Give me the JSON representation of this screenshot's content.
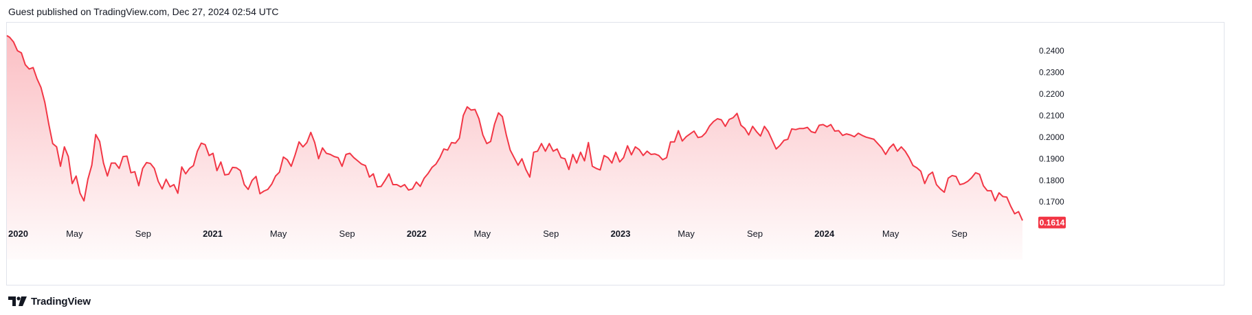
{
  "header": {
    "published": "Guest published on TradingView.com, Dec 27, 2024 02:54 UTC"
  },
  "footer": {
    "brand": "TradingView",
    "logo_icon": "tradingview-logo-icon"
  },
  "colors": {
    "line": "#f23645",
    "fill_top": "#f23645",
    "price_badge_bg": "#f23645",
    "price_badge_text": "#ffffff",
    "axis_text": "#131722",
    "border": "#e0e3eb"
  },
  "chart_data": {
    "type": "area",
    "ylim": [
      0.158,
      0.246
    ],
    "yticks": [
      "0.2400",
      "0.2300",
      "0.2200",
      "0.2100",
      "0.2000",
      "0.1900",
      "0.1800",
      "0.1700"
    ],
    "last_price": "0.1614",
    "xticks": [
      {
        "date": "2020-01-01",
        "label": "2020",
        "bold": true
      },
      {
        "date": "2020-05-01",
        "label": "May",
        "bold": false
      },
      {
        "date": "2020-09-01",
        "label": "Sep",
        "bold": false
      },
      {
        "date": "2021-01-01",
        "label": "2021",
        "bold": true
      },
      {
        "date": "2021-05-01",
        "label": "May",
        "bold": false
      },
      {
        "date": "2021-09-01",
        "label": "Sep",
        "bold": false
      },
      {
        "date": "2022-01-01",
        "label": "2022",
        "bold": true
      },
      {
        "date": "2022-05-01",
        "label": "May",
        "bold": false
      },
      {
        "date": "2022-09-01",
        "label": "Sep",
        "bold": false
      },
      {
        "date": "2023-01-01",
        "label": "2023",
        "bold": true
      },
      {
        "date": "2023-05-01",
        "label": "May",
        "bold": false
      },
      {
        "date": "2023-09-01",
        "label": "Sep",
        "bold": false
      },
      {
        "date": "2024-01-01",
        "label": "2024",
        "bold": true
      },
      {
        "date": "2024-05-01",
        "label": "May",
        "bold": false
      },
      {
        "date": "2024-09-01",
        "label": "Sep",
        "bold": false
      }
    ],
    "x": [
      "2019-12-30",
      "2020-01-06",
      "2020-01-13",
      "2020-01-20",
      "2020-01-27",
      "2020-02-03",
      "2020-02-10",
      "2020-02-17",
      "2020-02-24",
      "2020-03-02",
      "2020-03-09",
      "2020-03-16",
      "2020-03-23",
      "2020-03-30",
      "2020-04-06",
      "2020-04-13",
      "2020-04-20",
      "2020-04-27",
      "2020-05-04",
      "2020-05-11",
      "2020-05-18",
      "2020-05-25",
      "2020-06-01",
      "2020-06-08",
      "2020-06-15",
      "2020-06-22",
      "2020-06-29",
      "2020-07-06",
      "2020-07-13",
      "2020-07-20",
      "2020-07-27",
      "2020-08-03",
      "2020-08-10",
      "2020-08-17",
      "2020-08-24",
      "2020-08-31",
      "2020-09-07",
      "2020-09-14",
      "2020-09-21",
      "2020-09-28",
      "2020-10-05",
      "2020-10-12",
      "2020-10-19",
      "2020-10-26",
      "2020-11-02",
      "2020-11-09",
      "2020-11-16",
      "2020-11-23",
      "2020-11-30",
      "2020-12-07",
      "2020-12-14",
      "2020-12-21",
      "2020-12-28",
      "2021-01-04",
      "2021-01-11",
      "2021-01-18",
      "2021-01-25",
      "2021-02-01",
      "2021-02-08",
      "2021-02-15",
      "2021-02-22",
      "2021-03-01",
      "2021-03-08",
      "2021-03-15",
      "2021-03-22",
      "2021-03-29",
      "2021-04-05",
      "2021-04-12",
      "2021-04-19",
      "2021-04-26",
      "2021-05-03",
      "2021-05-10",
      "2021-05-17",
      "2021-05-24",
      "2021-05-31",
      "2021-06-07",
      "2021-06-14",
      "2021-06-21",
      "2021-06-28",
      "2021-07-05",
      "2021-07-12",
      "2021-07-19",
      "2021-07-26",
      "2021-08-02",
      "2021-08-09",
      "2021-08-16",
      "2021-08-23",
      "2021-08-30",
      "2021-09-06",
      "2021-09-13",
      "2021-09-20",
      "2021-09-27",
      "2021-10-04",
      "2021-10-11",
      "2021-10-18",
      "2021-10-25",
      "2021-11-01",
      "2021-11-08",
      "2021-11-15",
      "2021-11-22",
      "2021-11-29",
      "2021-12-06",
      "2021-12-13",
      "2021-12-20",
      "2021-12-27",
      "2022-01-03",
      "2022-01-10",
      "2022-01-17",
      "2022-01-24",
      "2022-01-31",
      "2022-02-07",
      "2022-02-14",
      "2022-02-21",
      "2022-02-28",
      "2022-03-07",
      "2022-03-14",
      "2022-03-21",
      "2022-03-28",
      "2022-04-04",
      "2022-04-11",
      "2022-04-18",
      "2022-04-25",
      "2022-05-02",
      "2022-05-09",
      "2022-05-16",
      "2022-05-23",
      "2022-05-30",
      "2022-06-06",
      "2022-06-13",
      "2022-06-20",
      "2022-06-27",
      "2022-07-04",
      "2022-07-11",
      "2022-07-18",
      "2022-07-25",
      "2022-08-01",
      "2022-08-08",
      "2022-08-15",
      "2022-08-22",
      "2022-08-29",
      "2022-09-05",
      "2022-09-12",
      "2022-09-19",
      "2022-09-26",
      "2022-10-03",
      "2022-10-10",
      "2022-10-17",
      "2022-10-24",
      "2022-10-31",
      "2022-11-07",
      "2022-11-14",
      "2022-11-21",
      "2022-11-28",
      "2022-12-05",
      "2022-12-12",
      "2022-12-19",
      "2022-12-26",
      "2023-01-02",
      "2023-01-09",
      "2023-01-16",
      "2023-01-23",
      "2023-01-30",
      "2023-02-06",
      "2023-02-13",
      "2023-02-20",
      "2023-02-27",
      "2023-03-06",
      "2023-03-13",
      "2023-03-20",
      "2023-03-27",
      "2023-04-03",
      "2023-04-10",
      "2023-04-17",
      "2023-04-24",
      "2023-05-01",
      "2023-05-08",
      "2023-05-15",
      "2023-05-22",
      "2023-05-29",
      "2023-06-05",
      "2023-06-12",
      "2023-06-19",
      "2023-06-26",
      "2023-07-03",
      "2023-07-10",
      "2023-07-17",
      "2023-07-24",
      "2023-07-31",
      "2023-08-07",
      "2023-08-14",
      "2023-08-21",
      "2023-08-28",
      "2023-09-04",
      "2023-09-11",
      "2023-09-18",
      "2023-09-25",
      "2023-10-02",
      "2023-10-09",
      "2023-10-16",
      "2023-10-23",
      "2023-10-30",
      "2023-11-06",
      "2023-11-13",
      "2023-11-20",
      "2023-11-27",
      "2023-12-04",
      "2023-12-11",
      "2023-12-18",
      "2023-12-25",
      "2024-01-01",
      "2024-01-08",
      "2024-01-15",
      "2024-01-22",
      "2024-01-29",
      "2024-02-05",
      "2024-02-12",
      "2024-02-19",
      "2024-02-26",
      "2024-03-04",
      "2024-03-11",
      "2024-03-18",
      "2024-03-25",
      "2024-04-01",
      "2024-04-08",
      "2024-04-15",
      "2024-04-22",
      "2024-04-29",
      "2024-05-06",
      "2024-05-13",
      "2024-05-20",
      "2024-05-27",
      "2024-06-03",
      "2024-06-10",
      "2024-06-17",
      "2024-06-24",
      "2024-07-01",
      "2024-07-08",
      "2024-07-15",
      "2024-07-22",
      "2024-07-29",
      "2024-08-05",
      "2024-08-12",
      "2024-08-19",
      "2024-08-26",
      "2024-09-02",
      "2024-09-09",
      "2024-09-16",
      "2024-09-23",
      "2024-09-30",
      "2024-10-07",
      "2024-10-14",
      "2024-10-21",
      "2024-10-28",
      "2024-11-04",
      "2024-11-11",
      "2024-11-18",
      "2024-11-25",
      "2024-12-02",
      "2024-12-09",
      "2024-12-16",
      "2024-12-23"
    ],
    "series": [
      {
        "values": [
          0.247,
          0.2462,
          0.244,
          0.24,
          0.239,
          0.2335,
          0.2315,
          0.2322,
          0.227,
          0.223,
          0.216,
          0.206,
          0.197,
          0.1955,
          0.1865,
          0.1955,
          0.191,
          0.1785,
          0.182,
          0.174,
          0.1705,
          0.1805,
          0.187,
          0.2012,
          0.198,
          0.188,
          0.182,
          0.188,
          0.188,
          0.1855,
          0.191,
          0.1912,
          0.1835,
          0.184,
          0.1775,
          0.1855,
          0.1882,
          0.1878,
          0.1855,
          0.1795,
          0.176,
          0.1805,
          0.177,
          0.178,
          0.174,
          0.1862,
          0.183,
          0.1855,
          0.1868,
          0.1935,
          0.1972,
          0.1965,
          0.1915,
          0.1925,
          0.1845,
          0.1885,
          0.1825,
          0.1828,
          0.186,
          0.1858,
          0.1845,
          0.178,
          0.1758,
          0.18,
          0.1818,
          0.1738,
          0.175,
          0.1758,
          0.1782,
          0.182,
          0.1838,
          0.1908,
          0.1895,
          0.1865,
          0.1918,
          0.1978,
          0.1955,
          0.1975,
          0.2022,
          0.1975,
          0.19,
          0.195,
          0.1925,
          0.192,
          0.191,
          0.1905,
          0.1865,
          0.192,
          0.1925,
          0.1905,
          0.189,
          0.1875,
          0.1868,
          0.1815,
          0.183,
          0.177,
          0.1772,
          0.18,
          0.183,
          0.178,
          0.178,
          0.177,
          0.178,
          0.1755,
          0.176,
          0.1792,
          0.1772,
          0.181,
          0.1832,
          0.186,
          0.1875,
          0.1905,
          0.1945,
          0.194,
          0.1975,
          0.1972,
          0.1995,
          0.21,
          0.214,
          0.2125,
          0.2128,
          0.2085,
          0.201,
          0.197,
          0.198,
          0.206,
          0.2112,
          0.2095,
          0.201,
          0.194,
          0.1905,
          0.187,
          0.19,
          0.185,
          0.1815,
          0.193,
          0.1935,
          0.197,
          0.1935,
          0.197,
          0.1935,
          0.1945,
          0.1905,
          0.19,
          0.185,
          0.192,
          0.188,
          0.193,
          0.189,
          0.1975,
          0.1865,
          0.1855,
          0.1848,
          0.1915,
          0.1905,
          0.188,
          0.193,
          0.1885,
          0.1905,
          0.196,
          0.1918,
          0.1955,
          0.1942,
          0.1915,
          0.1935,
          0.192,
          0.1922,
          0.1915,
          0.1895,
          0.1905,
          0.1978,
          0.1978,
          0.203,
          0.1982,
          0.2002,
          0.2015,
          0.2028,
          0.1998,
          0.2002,
          0.202,
          0.2052,
          0.2072,
          0.2085,
          0.208,
          0.205,
          0.2082,
          0.209,
          0.211,
          0.2055,
          0.204,
          0.201,
          0.205,
          0.2025,
          0.2005,
          0.205,
          0.2025,
          0.1985,
          0.1945,
          0.1962,
          0.1985,
          0.199,
          0.2038,
          0.2035,
          0.204,
          0.204,
          0.2045,
          0.2025,
          0.202,
          0.2055,
          0.2058,
          0.2048,
          0.2058,
          0.2028,
          0.203,
          0.2008,
          0.2015,
          0.201,
          0.2002,
          0.2018,
          0.2008,
          0.2,
          0.1995,
          0.199,
          0.197,
          0.195,
          0.192,
          0.195,
          0.1968,
          0.1935,
          0.1955,
          0.1935,
          0.1905,
          0.1868,
          0.1858,
          0.1842,
          0.1785,
          0.1825,
          0.1838,
          0.178,
          0.176,
          0.1745,
          0.181,
          0.1822,
          0.1818,
          0.178,
          0.1785,
          0.1795,
          0.1812,
          0.1835,
          0.1828,
          0.1775,
          0.1752,
          0.1752,
          0.1705,
          0.1742,
          0.1725,
          0.1722,
          0.168,
          0.1645,
          0.1655,
          0.1614
        ]
      }
    ]
  }
}
